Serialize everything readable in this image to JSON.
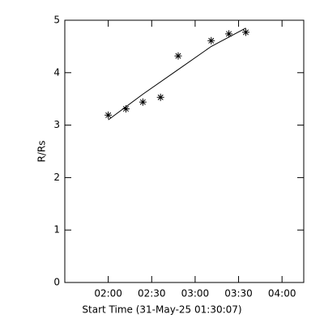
{
  "chart_data": {
    "type": "scatter",
    "xlabel": "Start Time (31-May-25 01:30:07)",
    "ylabel": "R/Rs",
    "xlim": [
      90,
      255
    ],
    "ylim": [
      0,
      5
    ],
    "xticks": [
      {
        "value": 120,
        "label": "02:00"
      },
      {
        "value": 150,
        "label": "02:30"
      },
      {
        "value": 180,
        "label": "03:00"
      },
      {
        "value": 210,
        "label": "03:30"
      },
      {
        "value": 240,
        "label": "04:00"
      }
    ],
    "yticks": [
      0,
      1,
      2,
      3,
      4,
      5
    ],
    "series": [
      {
        "kind": "points",
        "color": "#000000",
        "x": [
          120,
          132.2,
          143.9,
          156.1,
          168.3,
          191.1,
          203.3,
          215
        ],
        "values": [
          3.19,
          3.31,
          3.44,
          3.53,
          4.32,
          4.61,
          4.74,
          4.77
        ]
      },
      {
        "kind": "line",
        "color": "#000000",
        "x": [
          120,
          143.9,
          168.3,
          191.1,
          215
        ],
        "values": [
          3.1,
          3.59,
          4.06,
          4.5,
          4.85
        ]
      }
    ]
  }
}
